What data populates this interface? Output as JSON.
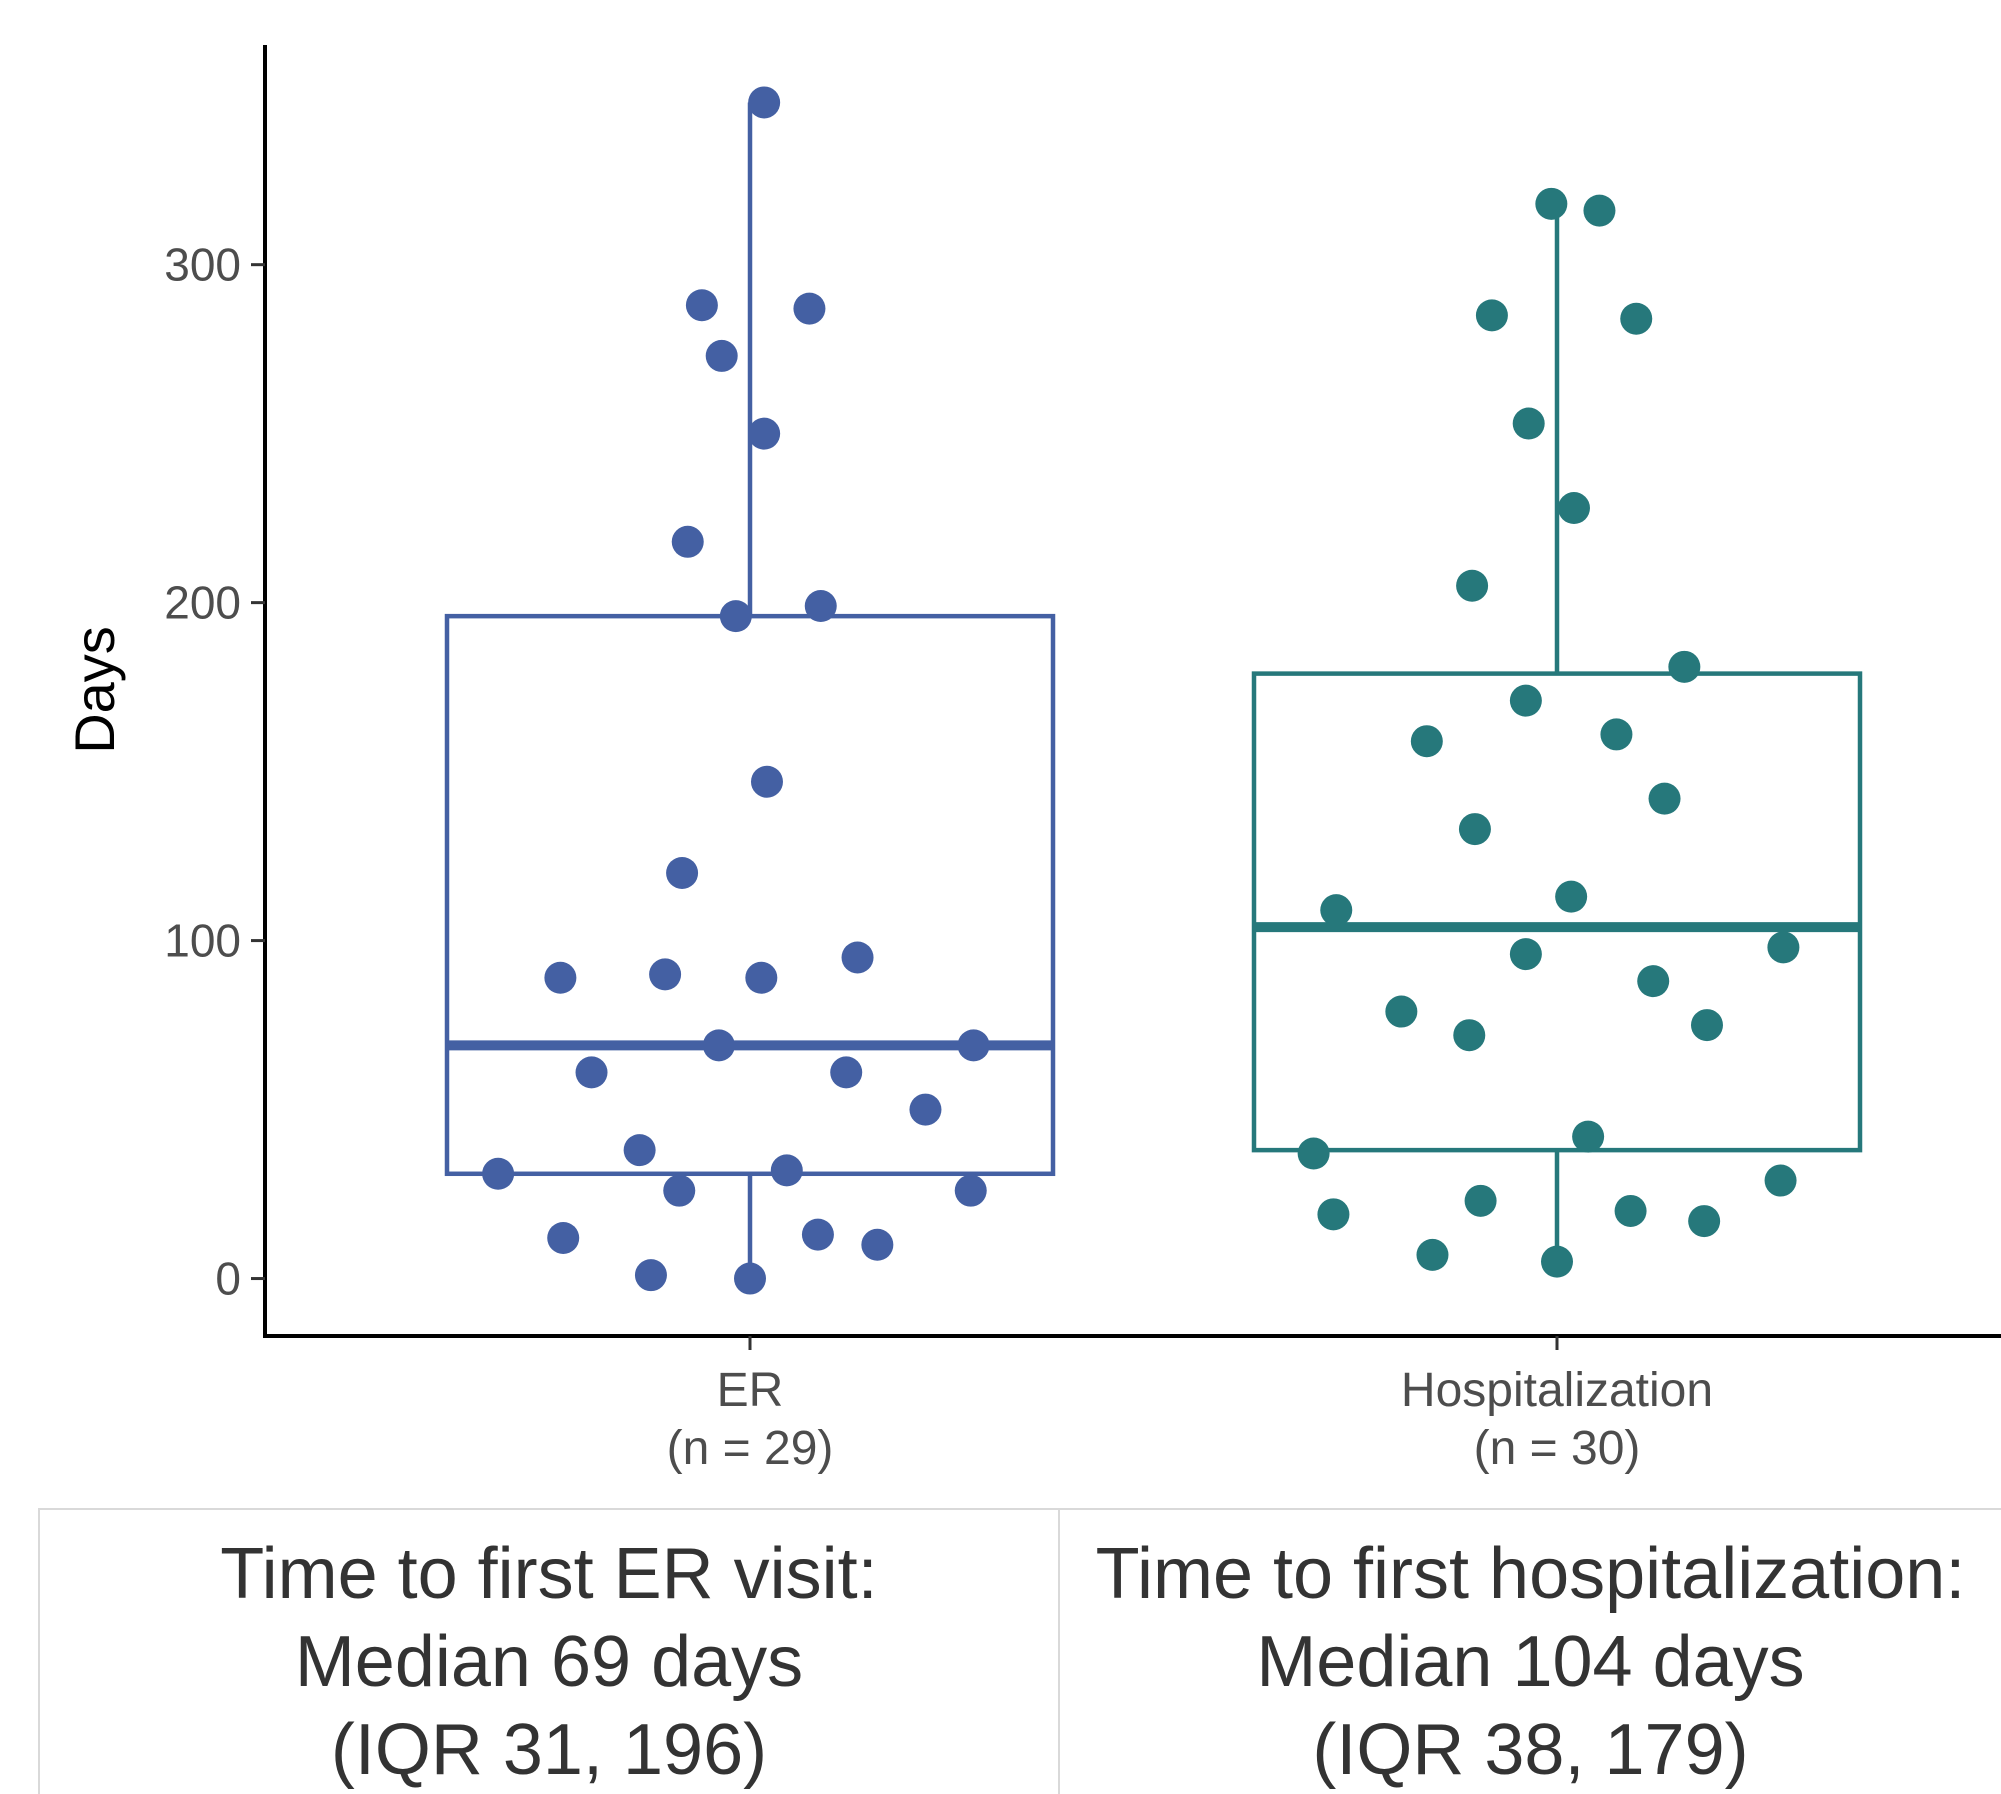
{
  "chart_data": {
    "type": "boxplot",
    "ylabel": "Days",
    "xlabel": "",
    "ylim": [
      -17,
      365
    ],
    "yticks": [
      0,
      100,
      200,
      300
    ],
    "ytick_labels": [
      "0",
      "100",
      "200",
      "300"
    ],
    "grid": false,
    "legend": "none",
    "categories": [
      "ER",
      "Hospitalization"
    ],
    "category_labels": [
      {
        "name": "ER",
        "n": "(n = 29)"
      },
      {
        "name": "Hospitalization",
        "n": "(n = 30)"
      }
    ],
    "series": [
      {
        "category": "ER",
        "color": "#4460a3",
        "box": {
          "min": 0,
          "q1": 31,
          "median": 69,
          "q3": 196,
          "max": 348
        },
        "points": [
          {
            "jitter": 0.05,
            "y": 348
          },
          {
            "jitter": -0.17,
            "y": 288
          },
          {
            "jitter": 0.21,
            "y": 287
          },
          {
            "jitter": -0.1,
            "y": 273
          },
          {
            "jitter": 0.05,
            "y": 250
          },
          {
            "jitter": -0.22,
            "y": 218
          },
          {
            "jitter": -0.05,
            "y": 196
          },
          {
            "jitter": 0.25,
            "y": 199
          },
          {
            "jitter": 0.06,
            "y": 147
          },
          {
            "jitter": -0.24,
            "y": 120
          },
          {
            "jitter": -0.67,
            "y": 89
          },
          {
            "jitter": -0.3,
            "y": 90
          },
          {
            "jitter": 0.04,
            "y": 89
          },
          {
            "jitter": 0.38,
            "y": 95
          },
          {
            "jitter": -0.56,
            "y": 61
          },
          {
            "jitter": -0.11,
            "y": 69
          },
          {
            "jitter": 0.34,
            "y": 61
          },
          {
            "jitter": 0.79,
            "y": 69
          },
          {
            "jitter": 0.62,
            "y": 50
          },
          {
            "jitter": -0.39,
            "y": 38
          },
          {
            "jitter": -0.89,
            "y": 31
          },
          {
            "jitter": 0.13,
            "y": 32
          },
          {
            "jitter": -0.25,
            "y": 26
          },
          {
            "jitter": 0.78,
            "y": 26
          },
          {
            "jitter": -0.66,
            "y": 12
          },
          {
            "jitter": 0.24,
            "y": 13
          },
          {
            "jitter": 0.45,
            "y": 10
          },
          {
            "jitter": -0.35,
            "y": 1
          },
          {
            "jitter": 0.0,
            "y": 0
          }
        ]
      },
      {
        "category": "Hospitalization",
        "color": "#26787b",
        "box": {
          "min": 5,
          "q1": 38,
          "median": 104,
          "q3": 179,
          "max": 318
        },
        "points": [
          {
            "jitter": -0.02,
            "y": 318
          },
          {
            "jitter": 0.15,
            "y": 316
          },
          {
            "jitter": -0.23,
            "y": 285
          },
          {
            "jitter": 0.28,
            "y": 284
          },
          {
            "jitter": -0.1,
            "y": 253
          },
          {
            "jitter": 0.06,
            "y": 228
          },
          {
            "jitter": -0.3,
            "y": 205
          },
          {
            "jitter": 0.45,
            "y": 181
          },
          {
            "jitter": -0.11,
            "y": 171
          },
          {
            "jitter": 0.21,
            "y": 161
          },
          {
            "jitter": -0.46,
            "y": 159
          },
          {
            "jitter": 0.38,
            "y": 142
          },
          {
            "jitter": -0.29,
            "y": 133
          },
          {
            "jitter": 0.05,
            "y": 113
          },
          {
            "jitter": -0.78,
            "y": 109
          },
          {
            "jitter": -0.11,
            "y": 96
          },
          {
            "jitter": 0.8,
            "y": 98
          },
          {
            "jitter": 0.34,
            "y": 88
          },
          {
            "jitter": -0.55,
            "y": 79
          },
          {
            "jitter": -0.31,
            "y": 72
          },
          {
            "jitter": 0.53,
            "y": 75
          },
          {
            "jitter": 0.11,
            "y": 42
          },
          {
            "jitter": -0.86,
            "y": 37
          },
          {
            "jitter": -0.27,
            "y": 23
          },
          {
            "jitter": 0.79,
            "y": 29
          },
          {
            "jitter": -0.79,
            "y": 19
          },
          {
            "jitter": 0.26,
            "y": 20
          },
          {
            "jitter": 0.52,
            "y": 17
          },
          {
            "jitter": -0.44,
            "y": 7
          },
          {
            "jitter": 0.0,
            "y": 5
          }
        ]
      }
    ]
  },
  "summary": {
    "er": {
      "line1": "Time to first ER visit:",
      "line2": "Median 69 days",
      "line3": "(IQR 31, 196)"
    },
    "hospitalization": {
      "line1": "Time to first hospitalization:",
      "line2": "Median 104 days",
      "line3": "(IQR 38, 179)"
    }
  }
}
